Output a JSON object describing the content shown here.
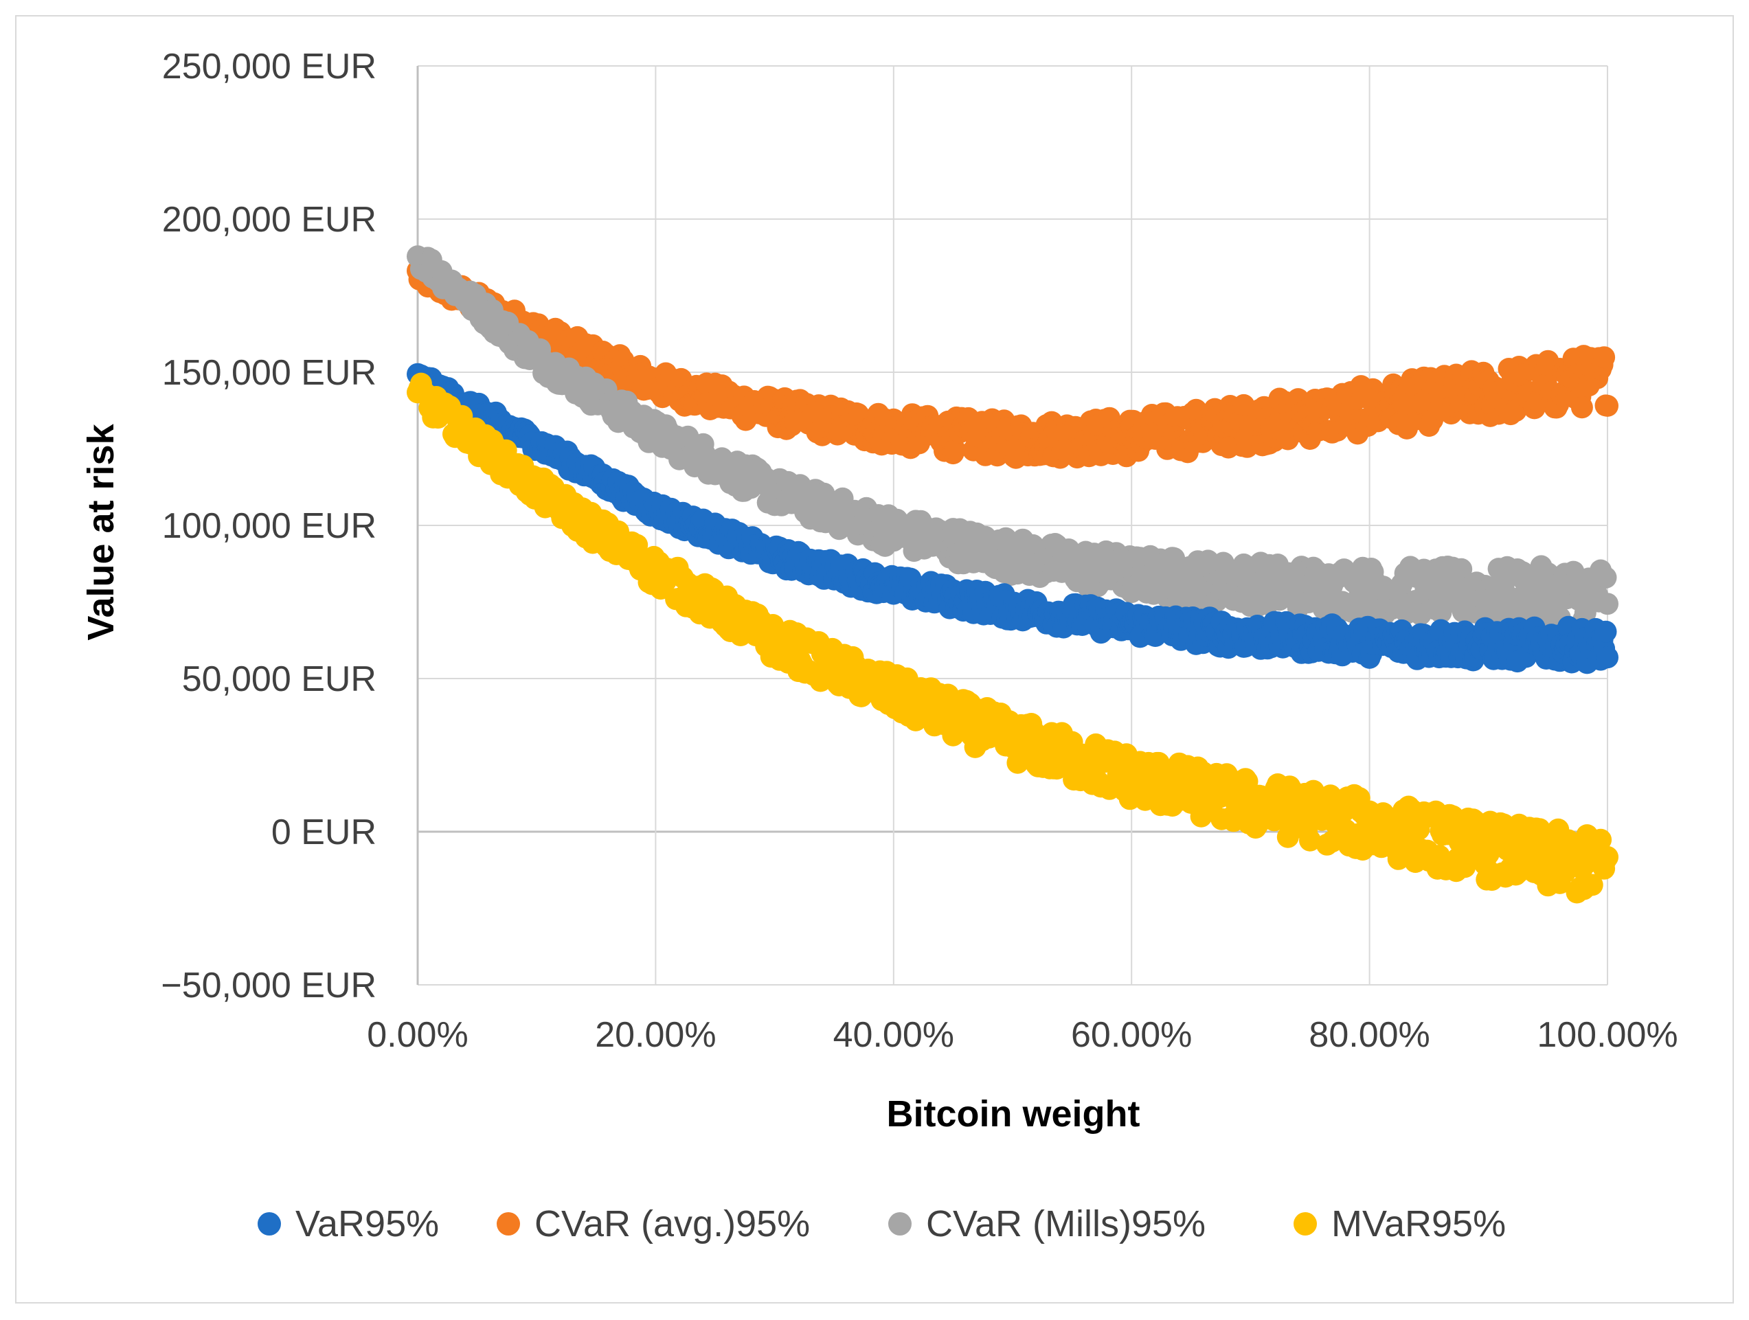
{
  "chart_data": {
    "type": "scatter",
    "title": "",
    "xlabel": "Bitcoin weight",
    "ylabel": "Value at risk",
    "xlim": [
      0,
      100
    ],
    "ylim": [
      -50000,
      250000
    ],
    "x_ticks": [
      0,
      20,
      40,
      60,
      80,
      100
    ],
    "x_tick_labels": [
      "0.00%",
      "20.00%",
      "40.00%",
      "60.00%",
      "80.00%",
      "100.00%"
    ],
    "y_ticks": [
      -50000,
      0,
      50000,
      100000,
      150000,
      200000,
      250000
    ],
    "y_tick_labels": [
      "−50,000 EUR",
      "0 EUR",
      "50,000 EUR",
      "100,000 EUR",
      "150,000 EUR",
      "200,000 EUR",
      "250,000 EUR"
    ],
    "grid": true,
    "legend_position": "bottom",
    "series": [
      {
        "name": "VaR95%",
        "color": "#1f6fc6",
        "x": [
          0,
          10,
          20,
          30,
          40,
          50,
          60,
          70,
          80,
          90,
          100
        ],
        "y": [
          148000,
          127000,
          105000,
          90000,
          80000,
          73000,
          68000,
          64000,
          62000,
          61000,
          61000
        ],
        "spread": 4000
      },
      {
        "name": "CVaR (avg.)95%",
        "color": "#f47b20",
        "x": [
          0,
          10,
          20,
          30,
          40,
          50,
          60,
          70,
          80,
          90,
          100
        ],
        "y": [
          182000,
          163000,
          146000,
          137000,
          131000,
          128000,
          129000,
          133000,
          138000,
          143000,
          148000
        ],
        "spread": 6000
      },
      {
        "name": "CVaR (Mills)95%",
        "color": "#a6a6a6",
        "x": [
          0,
          10,
          20,
          30,
          40,
          50,
          60,
          70,
          80,
          90,
          100
        ],
        "y": [
          188000,
          155000,
          130000,
          111000,
          98000,
          90000,
          84000,
          81000,
          79000,
          78000,
          78000
        ],
        "spread": 6000
      },
      {
        "name": "MVaR95%",
        "color": "#ffc000",
        "x": [
          0,
          10,
          20,
          30,
          40,
          50,
          60,
          70,
          80,
          90,
          100
        ],
        "y": [
          143000,
          112000,
          85000,
          62000,
          45000,
          30000,
          18000,
          9000,
          2000,
          -6000,
          -12000
        ],
        "spread": 7000
      }
    ]
  }
}
